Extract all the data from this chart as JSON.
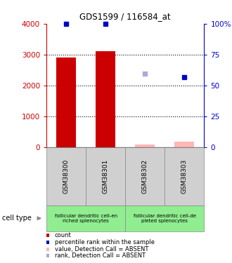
{
  "title": "GDS1599 / 116584_at",
  "samples": [
    "GSM38300",
    "GSM38301",
    "GSM38302",
    "GSM38303"
  ],
  "bar_values": [
    2900,
    3100,
    90,
    180
  ],
  "bar_present": [
    true,
    true,
    false,
    false
  ],
  "bar_absent": [
    false,
    false,
    true,
    true
  ],
  "dot_left_present": [
    4000,
    4000,
    null,
    null
  ],
  "dot_left_absent": [
    null,
    null,
    2380,
    2280
  ],
  "dot_color_present": "#0000cc",
  "dot_color_absent_rank": "#aaaadd",
  "dot_color_absent_val": "#0000cc",
  "bar_color_present": "#cc0000",
  "bar_color_absent": "#ffb6b6",
  "ylim_left": [
    0,
    4000
  ],
  "ylim_right": [
    0,
    100
  ],
  "yticks_left": [
    0,
    1000,
    2000,
    3000,
    4000
  ],
  "yticks_right": [
    0,
    25,
    50,
    75,
    100
  ],
  "ytick_labels_right": [
    "0",
    "25",
    "50",
    "75",
    "100%"
  ],
  "cell_type_label": "cell type",
  "group1_label": "follicular dendritic cell-en\nriched splenocytes",
  "group2_label": "follicular dendritic cell-de\npleted splenocytes",
  "group_color": "#90ee90",
  "legend_items": [
    {
      "label": "count",
      "color": "#cc0000"
    },
    {
      "label": "percentile rank within the sample",
      "color": "#0000cc"
    },
    {
      "label": "value, Detection Call = ABSENT",
      "color": "#ffb6b6"
    },
    {
      "label": "rank, Detection Call = ABSENT",
      "color": "#aaaadd"
    }
  ],
  "bg_color": "#ffffff",
  "left_axis_color": "#cc0000",
  "right_axis_color": "#0000cc",
  "bar_width": 0.5
}
